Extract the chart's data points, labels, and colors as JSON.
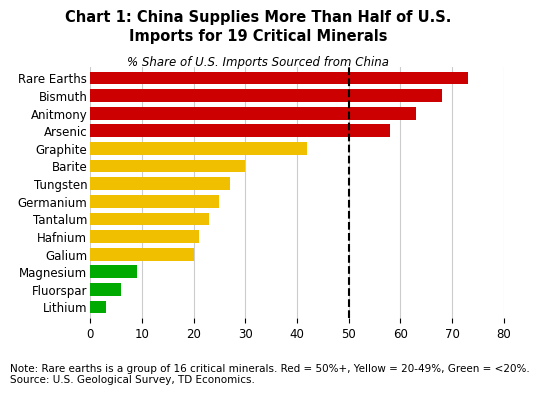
{
  "title": "Chart 1: China Supplies More Than Half of U.S.\nImports for 19 Critical Minerals",
  "subtitle": "% Share of U.S. Imports Sourced from China",
  "categories": [
    "Rare Earths",
    "Bismuth",
    "Anitmony",
    "Arsenic",
    "Graphite",
    "Barite",
    "Tungsten",
    "Germanium",
    "Tantalum",
    "Hafnium",
    "Galium",
    "Magnesium",
    "Fluorspar",
    "Lithium"
  ],
  "values": [
    73,
    68,
    63,
    58,
    42,
    30,
    27,
    25,
    23,
    21,
    20,
    9,
    6,
    3
  ],
  "colors": [
    "#cc0000",
    "#cc0000",
    "#cc0000",
    "#cc0000",
    "#f0c000",
    "#f0c000",
    "#f0c000",
    "#f0c000",
    "#f0c000",
    "#f0c000",
    "#f0c000",
    "#00aa00",
    "#00aa00",
    "#00aa00"
  ],
  "xlim": [
    0,
    80
  ],
  "xticks": [
    0,
    10,
    20,
    30,
    40,
    50,
    60,
    70,
    80
  ],
  "dashed_line_x": 50,
  "note": "Note: Rare earths is a group of 16 critical minerals. Red = 50%+, Yellow = 20-49%, Green = <20%.\nSource: U.S. Geological Survey, TD Economics.",
  "background_color": "#ffffff",
  "bar_height": 0.72,
  "grid_color": "#cccccc",
  "title_fontsize": 10.5,
  "subtitle_fontsize": 8.5,
  "label_fontsize": 8.5,
  "tick_fontsize": 8.5,
  "note_fontsize": 7.5
}
